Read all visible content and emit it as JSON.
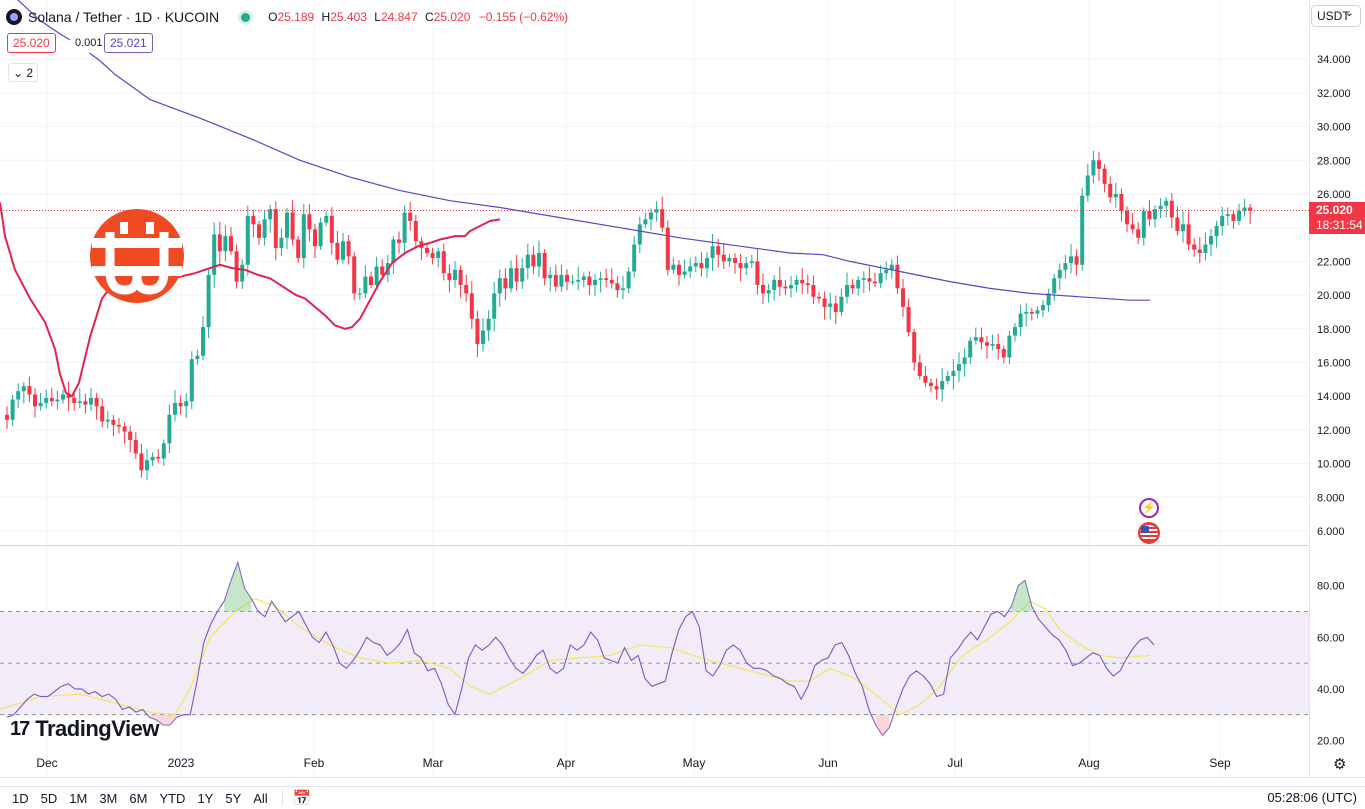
{
  "header": {
    "symbol": "Solana / Tether · 1D · KUCOIN",
    "open_label": "O",
    "open": "25.189",
    "high_label": "H",
    "high": "25.403",
    "low_label": "L",
    "low": "24.847",
    "close_label": "C",
    "close": "25.020",
    "change": "−0.155 (−0.62%)"
  },
  "quote": {
    "bid": "25.020",
    "spread": "0.001",
    "ask": "25.021"
  },
  "indicators_toggle": "⌄ 2",
  "currency_button": "USDT",
  "current_price": {
    "price": "25.020",
    "countdown": "18:31:54"
  },
  "watermark": "TradingView",
  "timeframes": [
    "1D",
    "5D",
    "1M",
    "3M",
    "6M",
    "YTD",
    "1Y",
    "5Y",
    "All"
  ],
  "clock": "05:28:06 (UTC)",
  "colors": {
    "up": "#22ab94",
    "down": "#f23645",
    "ma_fast": "#e0234e",
    "ma_slow": "#5b45c2",
    "rsi": "#7e57c2",
    "rsi_ma": "#f5e663",
    "rsi_band": "#ede7f6"
  },
  "chart_data": {
    "type": "candlestick",
    "price_axis": {
      "ticks": [
        6,
        8,
        10,
        12,
        14,
        16,
        18,
        20,
        22,
        24,
        26,
        28,
        30,
        32,
        34
      ],
      "tick_labels": [
        "6.000",
        "8.000",
        "10.000",
        "12.000",
        "14.000",
        "16.000",
        "18.000",
        "20.000",
        "22.000",
        "24.000",
        "26.000",
        "28.000",
        "30.000",
        "32.000",
        "34.000"
      ]
    },
    "time_axis": {
      "labels": [
        "Dec",
        "2023",
        "Feb",
        "Mar",
        "Apr",
        "May",
        "Jun",
        "Jul",
        "Aug",
        "Sep"
      ]
    },
    "closes": [
      12.6,
      13.8,
      14.3,
      14.6,
      14.1,
      13.4,
      13.6,
      13.9,
      13.7,
      13.8,
      14.1,
      13.9,
      13.6,
      13.7,
      13.5,
      13.9,
      13.4,
      12.5,
      12.6,
      12.3,
      12.2,
      11.9,
      11.4,
      10.6,
      9.6,
      10.2,
      10.4,
      10.3,
      11.2,
      12.9,
      13.6,
      13.4,
      13.7,
      16.2,
      16.4,
      18.1,
      21.2,
      23.6,
      22.6,
      23.5,
      22.6,
      20.8,
      21.8,
      24.7,
      24.2,
      23.4,
      24.5,
      25.1,
      22.8,
      23.4,
      24.9,
      23.3,
      22.2,
      24.8,
      23.9,
      22.9,
      24.3,
      24.7,
      23.1,
      22.1,
      23.2,
      22.3,
      20.1,
      20.1,
      21.1,
      20.6,
      21.7,
      21.2,
      21.9,
      23.3,
      23.1,
      24.9,
      24.4,
      23.2,
      22.8,
      22.5,
      22.2,
      22.6,
      21.3,
      20.9,
      21.5,
      20.6,
      20.1,
      18.6,
      17.1,
      17.9,
      18.6,
      20.1,
      21.0,
      20.4,
      21.6,
      20.8,
      21.6,
      22.4,
      21.7,
      22.5,
      21.0,
      21.2,
      20.5,
      21.2,
      20.8,
      20.8,
      20.9,
      21.1,
      20.6,
      20.9,
      21.0,
      20.9,
      20.7,
      20.3,
      20.4,
      21.4,
      23.0,
      24.2,
      24.5,
      24.9,
      25.1,
      24.0,
      21.5,
      21.8,
      21.2,
      21.4,
      21.7,
      21.9,
      21.6,
      22.2,
      22.9,
      22.4,
      22.0,
      22.2,
      21.9,
      21.6,
      21.9,
      22.0,
      20.6,
      20.1,
      20.3,
      20.9,
      20.5,
      20.4,
      20.6,
      20.9,
      20.7,
      20.6,
      19.9,
      19.8,
      19.3,
      19.5,
      19.0,
      19.9,
      20.6,
      20.4,
      20.9,
      21.0,
      20.8,
      20.7,
      21.3,
      21.5,
      21.8,
      20.4,
      19.3,
      17.8,
      16.0,
      15.2,
      14.8,
      14.6,
      14.4,
      14.9,
      15.2,
      15.5,
      15.9,
      16.3,
      17.3,
      17.5,
      17.2,
      17.0,
      17.1,
      16.8,
      16.3,
      17.6,
      18.1,
      18.9,
      19.0,
      18.9,
      19.1,
      19.4,
      20.1,
      21.0,
      21.5,
      21.9,
      22.3,
      21.8,
      25.9,
      27.1,
      28.0,
      27.5,
      26.6,
      25.8,
      26.0,
      25.0,
      24.2,
      23.9,
      23.4,
      25.0,
      24.5,
      25.1,
      25.3,
      25.6,
      24.6,
      23.8,
      24.2,
      23.0,
      22.7,
      22.5,
      23.0,
      23.5,
      24.1,
      24.7,
      24.8,
      24.4,
      25.0,
      25.2,
      25.02
    ],
    "ma_fast": [
      [
        0,
        25.5
      ],
      [
        5,
        23.5
      ],
      [
        15,
        21.5
      ],
      [
        30,
        19.8
      ],
      [
        45,
        18.4
      ],
      [
        55,
        16.8
      ],
      [
        60,
        15.3
      ],
      [
        66,
        14.2
      ],
      [
        72,
        14.0
      ],
      [
        79,
        14.8
      ],
      [
        90,
        17.5
      ],
      [
        102,
        19.8
      ],
      [
        115,
        20.8
      ],
      [
        130,
        21.6
      ],
      [
        142,
        22.1
      ],
      [
        150,
        21.9
      ],
      [
        160,
        21.4
      ],
      [
        172,
        21.0
      ],
      [
        180,
        21.1
      ],
      [
        195,
        21.3
      ],
      [
        210,
        21.6
      ],
      [
        220,
        21.8
      ],
      [
        232,
        21.6
      ],
      [
        245,
        21.5
      ],
      [
        258,
        21.2
      ],
      [
        270,
        21.0
      ],
      [
        283,
        20.5
      ],
      [
        296,
        20.0
      ],
      [
        305,
        19.8
      ],
      [
        315,
        19.3
      ],
      [
        325,
        18.8
      ],
      [
        335,
        18.2
      ],
      [
        345,
        18.0
      ],
      [
        352,
        18.1
      ],
      [
        360,
        18.6
      ],
      [
        370,
        19.7
      ],
      [
        380,
        20.8
      ],
      [
        392,
        21.9
      ],
      [
        405,
        22.5
      ],
      [
        418,
        22.9
      ],
      [
        430,
        23.1
      ],
      [
        440,
        23.3
      ],
      [
        455,
        23.5
      ],
      [
        465,
        23.5
      ],
      [
        470,
        23.8
      ],
      [
        480,
        24.1
      ],
      [
        490,
        24.4
      ],
      [
        500,
        24.5
      ]
    ],
    "ma_slow": [
      [
        0,
        38.5
      ],
      [
        40,
        36.3
      ],
      [
        60,
        35.5
      ],
      [
        80,
        34.8
      ],
      [
        100,
        33.9
      ],
      [
        115,
        33.1
      ],
      [
        150,
        31.6
      ],
      [
        200,
        30.5
      ],
      [
        250,
        29.3
      ],
      [
        300,
        28.0
      ],
      [
        350,
        27.0
      ],
      [
        400,
        26.2
      ],
      [
        450,
        25.6
      ],
      [
        500,
        25.2
      ],
      [
        560,
        24.6
      ],
      [
        620,
        24.0
      ],
      [
        680,
        23.4
      ],
      [
        740,
        22.9
      ],
      [
        790,
        22.5
      ],
      [
        823,
        22.4
      ],
      [
        850,
        22.0
      ],
      [
        900,
        21.4
      ],
      [
        950,
        20.8
      ],
      [
        990,
        20.4
      ],
      [
        1030,
        20.1
      ],
      [
        1080,
        19.9
      ],
      [
        1130,
        19.7
      ],
      [
        1150,
        19.7
      ]
    ],
    "rsi_axis": {
      "ticks": [
        20,
        40,
        60,
        80
      ],
      "tick_labels": [
        "20.00",
        "40.00",
        "60.00",
        "80.00"
      ],
      "upper_band": 70,
      "middle_band": 50,
      "lower_band": 30
    },
    "rsi": [
      29,
      30,
      33,
      36,
      38,
      37,
      37,
      39,
      41,
      42,
      40,
      40,
      38,
      39,
      37,
      38,
      36,
      32,
      33,
      31,
      32,
      29,
      28,
      26,
      26,
      29,
      30,
      30,
      43,
      58,
      65,
      70,
      74,
      82,
      89,
      79,
      75,
      70,
      68,
      74,
      70,
      66,
      68,
      70,
      65,
      60,
      58,
      62,
      57,
      50,
      48,
      51,
      55,
      60,
      58,
      57,
      53,
      55,
      58,
      63,
      54,
      52,
      47,
      48,
      42,
      34,
      30,
      40,
      52,
      57,
      55,
      57,
      60,
      57,
      52,
      48,
      46,
      49,
      53,
      55,
      48,
      46,
      48,
      57,
      55,
      57,
      62,
      59,
      52,
      51,
      50,
      56,
      51,
      53,
      44,
      41,
      42,
      43,
      54,
      63,
      68,
      70,
      64,
      47,
      45,
      49,
      55,
      57,
      55,
      50,
      48,
      48,
      47,
      45,
      44,
      42,
      41,
      36,
      41,
      49,
      51,
      52,
      57,
      58,
      53,
      46,
      41,
      32,
      26,
      22,
      25,
      33,
      40,
      45,
      47,
      45,
      42,
      37,
      38,
      52,
      55,
      59,
      62,
      59,
      64,
      69,
      70,
      68,
      72,
      80,
      82,
      72,
      67,
      64,
      61,
      59,
      55,
      49,
      50,
      52,
      54,
      53,
      48,
      45,
      47,
      52,
      56,
      59,
      60,
      57
    ],
    "rsi_ma": [
      [
        0,
        32
      ],
      [
        40,
        37
      ],
      [
        80,
        38
      ],
      [
        110,
        35
      ],
      [
        150,
        31
      ],
      [
        175,
        30
      ],
      [
        190,
        40
      ],
      [
        210,
        60
      ],
      [
        235,
        70
      ],
      [
        255,
        75
      ],
      [
        275,
        72
      ],
      [
        300,
        64
      ],
      [
        330,
        57
      ],
      [
        360,
        52
      ],
      [
        390,
        50
      ],
      [
        420,
        51
      ],
      [
        450,
        48
      ],
      [
        470,
        41
      ],
      [
        490,
        38
      ],
      [
        520,
        44
      ],
      [
        550,
        51
      ],
      [
        580,
        52
      ],
      [
        610,
        53
      ],
      [
        640,
        57
      ],
      [
        670,
        56
      ],
      [
        700,
        52
      ],
      [
        730,
        49
      ],
      [
        760,
        46
      ],
      [
        790,
        43
      ],
      [
        810,
        43
      ],
      [
        830,
        48
      ],
      [
        855,
        44
      ],
      [
        875,
        38
      ],
      [
        900,
        30
      ],
      [
        920,
        34
      ],
      [
        940,
        41
      ],
      [
        960,
        52
      ],
      [
        990,
        60
      ],
      [
        1010,
        66
      ],
      [
        1030,
        74
      ],
      [
        1045,
        71
      ],
      [
        1060,
        63
      ],
      [
        1080,
        57
      ],
      [
        1100,
        53
      ],
      [
        1120,
        52
      ],
      [
        1150,
        53
      ]
    ]
  }
}
